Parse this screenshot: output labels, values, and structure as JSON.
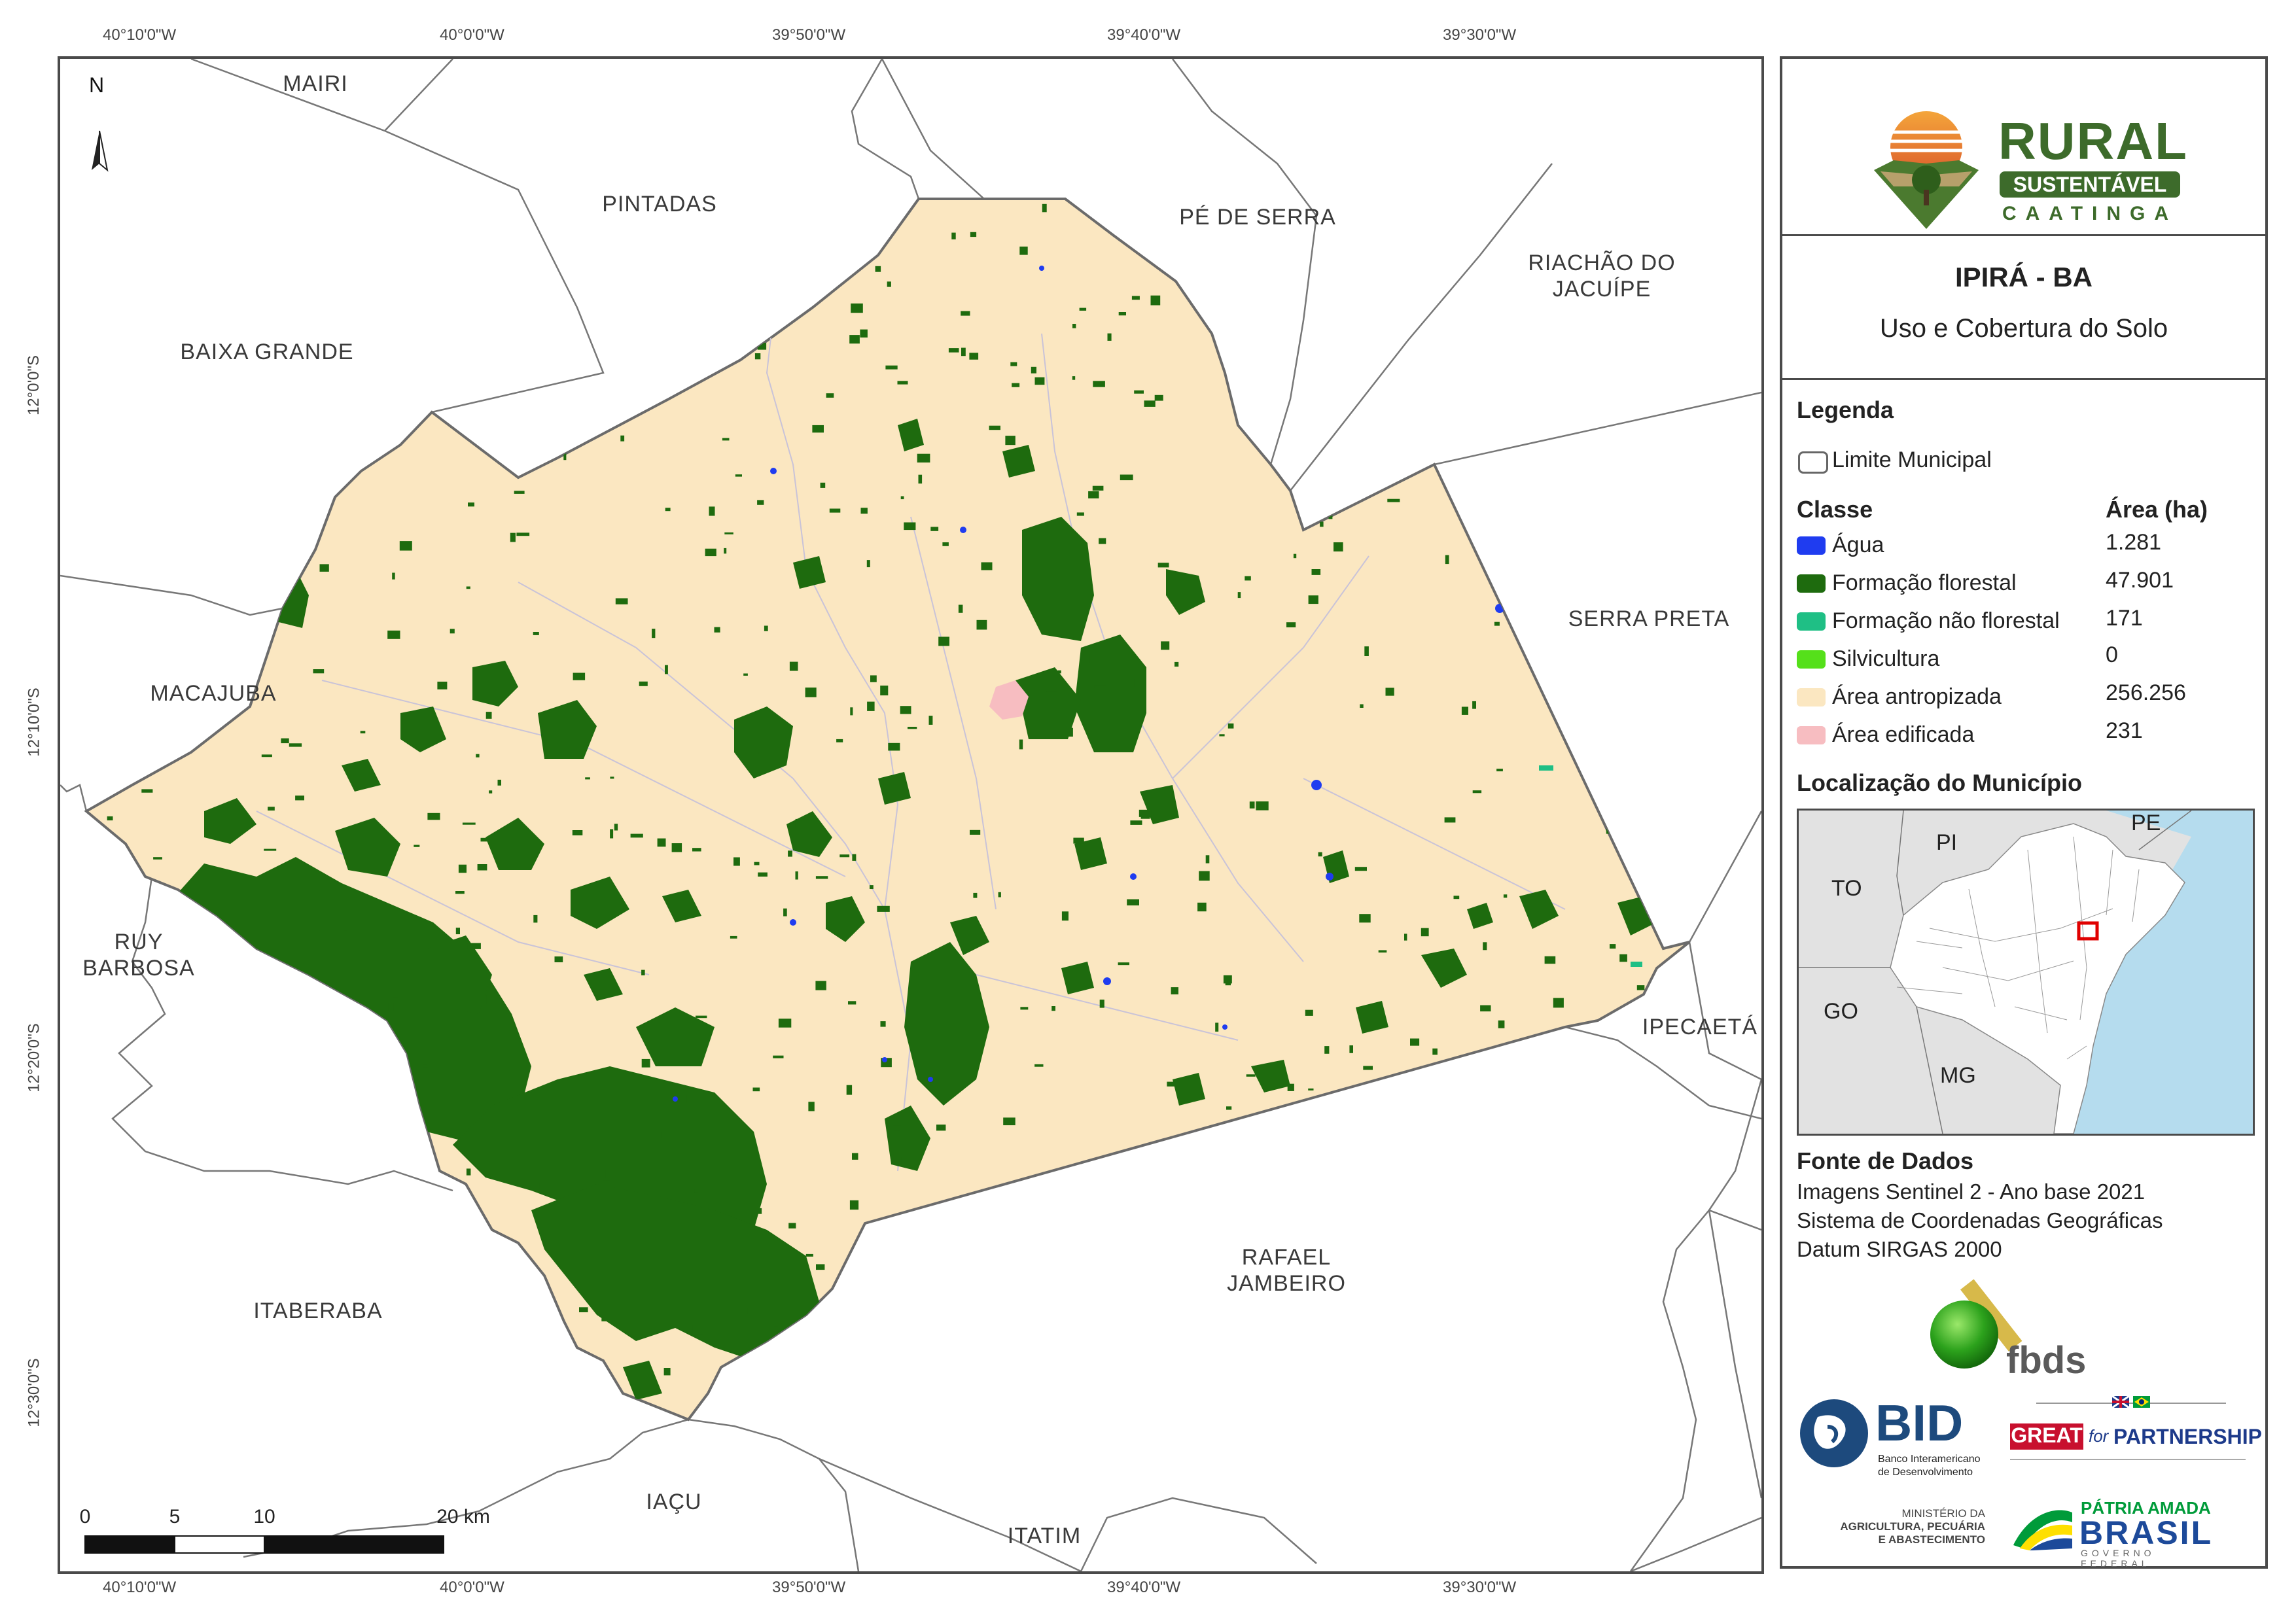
{
  "coordinates": {
    "top": [
      "40°10'0\"W",
      "40°0'0\"W",
      "39°50'0\"W",
      "39°40'0\"W",
      "39°30'0\"W"
    ],
    "bottom": [
      "40°10'0\"W",
      "40°0'0\"W",
      "39°50'0\"W",
      "39°40'0\"W",
      "39°30'0\"W"
    ],
    "left": [
      "12°0'0\"S",
      "12°10'0\"S",
      "12°20'0\"S",
      "12°30'0\"S"
    ]
  },
  "north_label": "N",
  "municipalities": {
    "mairi": "MAIRI",
    "pintadas": "PINTADAS",
    "pe_de_serra": "PÉ DE SERRA",
    "riachao_l1": "RIACHÃO DO",
    "riachao_l2": "JACUÍPE",
    "baixa_grande": "BAIXA GRANDE",
    "serra_preta": "SERRA PRETA",
    "macajuba": "MACAJUBA",
    "ruy_l1": "RUY",
    "ruy_l2": "BARBOSA",
    "ipecaeta": "IPECAETÁ",
    "rafael_l1": "RAFAEL",
    "rafael_l2": "JAMBEIRO",
    "itaberaba": "ITABERABA",
    "iacu": "IAÇU",
    "itatim": "ITATIM"
  },
  "scale_bar": {
    "labels": [
      "0",
      "5",
      "10",
      "20 km"
    ]
  },
  "logo": {
    "rural": "RURAL",
    "sustentavel": "SUSTENTÁVEL",
    "caatinga": "CAATINGA"
  },
  "title": {
    "main": "IPIRÁ - BA",
    "subtitle": "Uso e Cobertura do Solo"
  },
  "legend": {
    "heading": "Legenda",
    "boundary": "Limite Municipal",
    "class_header": "Classe",
    "area_header": "Área (ha)",
    "items": [
      {
        "label": "Água",
        "area": "1.281",
        "color": "#1f3cf0"
      },
      {
        "label": "Formação florestal",
        "area": "47.901",
        "color": "#1e6b0e"
      },
      {
        "label": "Formação não florestal",
        "area": "171",
        "color": "#1fbf85"
      },
      {
        "label": "Silvicultura",
        "area": "0",
        "color": "#55e01a"
      },
      {
        "label": "Área antropizada",
        "area": "256.256",
        "color": "#fbe7c1"
      },
      {
        "label": "Área edificada",
        "area": "231",
        "color": "#f7bdc1"
      }
    ]
  },
  "location": {
    "heading": "Localização do Município",
    "states": [
      "PI",
      "PE",
      "TO",
      "GO",
      "MG"
    ]
  },
  "sources": {
    "heading": "Fonte de Dados",
    "lines": [
      "Imagens Sentinel 2 - Ano base 2021",
      "Sistema de Coordenadas Geográficas",
      "Datum SIRGAS 2000"
    ]
  },
  "partners": {
    "fbds": "fbds",
    "bid": "BID",
    "bid_l1": "Banco Interamericano",
    "bid_l2": "de Desenvolvimento",
    "great": "GREAT",
    "for": "for",
    "partnership": "PARTNERSHIP",
    "ministerio_l1": "MINISTÉRIO DA",
    "ministerio_l2": "AGRICULTURA, PECUÁRIA",
    "ministerio_l3": "E ABASTECIMENTO",
    "patria": "PÁTRIA AMADA",
    "brasil": "BRASIL",
    "governo": "GOVERNO FEDERAL"
  },
  "colors": {
    "anthropic": "#fbe7c1",
    "forest": "#1e6b0e",
    "water": "#1f3cf0",
    "urban": "#f7bdc1",
    "ocean": "#b5dcee",
    "neighbor_states": "#e2e2e2",
    "highlight": "#e00000"
  }
}
